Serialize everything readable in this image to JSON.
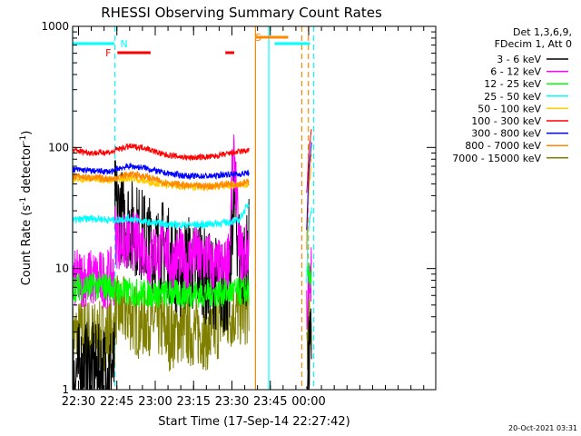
{
  "chart_data": {
    "type": "line",
    "title": "RHESSI Observing Summary Count Rates",
    "xlabel": "Start Time (17-Sep-14 22:27:42)",
    "ylabel_main": "Count Rate (s",
    "ylabel_sup1": "-1",
    "ylabel_mid": " detector",
    "ylabel_sup2": "-1",
    "ylabel_end": ")",
    "x_range_min": [
      0,
      142
    ],
    "y_range": [
      1,
      1000
    ],
    "y_scale": "log",
    "x_ticks": [
      {
        "m": 2.3,
        "label": "22:30"
      },
      {
        "m": 17.3,
        "label": "22:45"
      },
      {
        "m": 32.3,
        "label": "23:00"
      },
      {
        "m": 47.3,
        "label": "23:15"
      },
      {
        "m": 62.3,
        "label": "23:30"
      },
      {
        "m": 77.3,
        "label": "23:45"
      },
      {
        "m": 92.3,
        "label": "00:00"
      }
    ],
    "y_ticks": [
      {
        "v": 1,
        "label": "1"
      },
      {
        "v": 10,
        "label": "10"
      },
      {
        "v": 100,
        "label": "100"
      },
      {
        "v": 1000,
        "label": "1000"
      }
    ],
    "legend_header": [
      "Det 1,3,6,9,",
      "FDecim 1, Att 0"
    ],
    "series": [
      {
        "name": "3 - 6 keV",
        "color": "#000000",
        "segments": [
          {
            "x": [
              0,
              5,
              10,
              15,
              16.5
            ],
            "y": [
              1.4,
              1.5,
              1.4,
              1.5,
              1.5
            ]
          },
          {
            "x": [
              16.5,
              17,
              20,
              24,
              28,
              32,
              34,
              36,
              38,
              40,
              42,
              45,
              48,
              50,
              52,
              55,
              58,
              60,
              61.5,
              62.5,
              63.5,
              65,
              67,
              69
            ],
            "y": [
              35,
              32,
              26,
              22,
              18,
              15,
              13,
              17,
              12,
              11,
              9,
              12,
              9,
              12,
              8,
              8,
              7,
              7,
              7,
              30,
              35,
              14,
              10,
              16
            ]
          },
          {
            "x": [
              91.5,
              92,
              93,
              93.5
            ],
            "y": [
              1.2,
              1.5,
              2,
              3
            ]
          }
        ]
      },
      {
        "name": "6 - 12 keV",
        "color": "#ff00ff",
        "segments": [
          {
            "x": [
              0,
              5,
              10,
              15,
              16.5
            ],
            "y": [
              8,
              8.5,
              8,
              8.5,
              8.5
            ]
          },
          {
            "x": [
              16.5,
              17,
              20,
              24,
              28,
              30,
              32,
              34,
              36,
              38,
              40,
              42,
              44,
              46,
              48,
              50,
              52,
              54,
              56,
              58,
              60,
              61.5,
              62.5,
              63.5,
              65,
              67,
              69
            ],
            "y": [
              20,
              18,
              16,
              17,
              15,
              11,
              15,
              12,
              18,
              11,
              12,
              13,
              10,
              12,
              14,
              11,
              13,
              11,
              10,
              10,
              10,
              15,
              70,
              75,
              15,
              12,
              16
            ]
          },
          {
            "x": [
              91.5,
              92.5,
              93.5
            ],
            "y": [
              5,
              6,
              10
            ]
          }
        ]
      },
      {
        "name": "12 - 25 keV",
        "color": "#00ff00",
        "segments": [
          {
            "x": [
              0,
              10,
              16.5
            ],
            "y": [
              7,
              7.2,
              7
            ]
          },
          {
            "x": [
              16.5,
              30,
              50,
              69
            ],
            "y": [
              6.5,
              6.2,
              6.2,
              6.5
            ]
          },
          {
            "x": [
              91.5,
              93.5
            ],
            "y": [
              8,
              9
            ]
          }
        ]
      },
      {
        "name": "25 - 50 keV",
        "color": "#00ffff",
        "segments": [
          {
            "x": [
              0,
              8,
              16.5
            ],
            "y": [
              25,
              26,
              25
            ]
          },
          {
            "x": [
              16.5,
              22,
              30,
              40,
              50,
              60,
              65,
              69
            ],
            "y": [
              25,
              26,
              24,
              23,
              23,
              24,
              25,
              35
            ]
          },
          {
            "x": [
              91.5,
              92,
              93.5
            ],
            "y": [
              8,
              20,
              32
            ]
          }
        ]
      },
      {
        "name": "50 - 100 keV",
        "color": "#ffcc00",
        "segments": [
          {
            "x": [
              0,
              8,
              16.5
            ],
            "y": [
              54,
              55,
              54
            ]
          },
          {
            "x": [
              16.5,
              22,
              30,
              40,
              50,
              60,
              69
            ],
            "y": [
              54,
              56,
              52,
              48,
              47,
              48,
              50
            ]
          },
          {
            "x": [
              91.5,
              92.5,
              93.5
            ],
            "y": [
              20,
              50,
              70
            ]
          }
        ]
      },
      {
        "name": "100 - 300 keV",
        "color": "#ff0000",
        "segments": [
          {
            "x": [
              0,
              8,
              16.5
            ],
            "y": [
              95,
              90,
              92
            ]
          },
          {
            "x": [
              16.5,
              22,
              28,
              35,
              45,
              55,
              60,
              65,
              69
            ],
            "y": [
              95,
              102,
              100,
              88,
              82,
              84,
              88,
              92,
              95
            ]
          },
          {
            "x": [
              91.5,
              92.5,
              93.5
            ],
            "y": [
              40,
              100,
              140
            ]
          }
        ]
      },
      {
        "name": "300 - 800 keV",
        "color": "#0000ff",
        "segments": [
          {
            "x": [
              0,
              8,
              16.5
            ],
            "y": [
              66,
              64,
              63
            ]
          },
          {
            "x": [
              16.5,
              22,
              28,
              35,
              45,
              55,
              60,
              65,
              69
            ],
            "y": [
              66,
              70,
              68,
              62,
              58,
              58,
              60,
              60,
              62
            ]
          },
          {
            "x": [
              91.5,
              92.5,
              93.5
            ],
            "y": [
              20,
              75,
              110
            ]
          }
        ]
      },
      {
        "name": "800 - 7000 keV",
        "color": "#ff8800",
        "segments": [
          {
            "x": [
              0,
              8,
              16.5
            ],
            "y": [
              58,
              56,
              55
            ]
          },
          {
            "x": [
              16.5,
              22,
              28,
              35,
              45,
              55,
              60,
              65,
              69
            ],
            "y": [
              56,
              60,
              58,
              52,
              48,
              48,
              50,
              50,
              52
            ]
          },
          {
            "x": [
              91.5,
              92.5,
              93.5
            ],
            "y": [
              15,
              60,
              90
            ]
          }
        ]
      },
      {
        "name": "7000 - 15000 keV",
        "color": "#808000",
        "segments": [
          {
            "x": [
              0,
              5,
              10,
              16.5
            ],
            "y": [
              2.7,
              3,
              2.7,
              3
            ]
          },
          {
            "x": [
              16.5,
              22,
              26,
              30,
              34,
              38,
              42,
              46,
              50,
              54,
              58,
              62,
              66,
              69
            ],
            "y": [
              4.5,
              4.2,
              3.5,
              3.8,
              3.5,
              2.8,
              3.2,
              3,
              3,
              2.7,
              3.8,
              4.2,
              4.5,
              4.5
            ]
          },
          {
            "x": [
              91.5,
              92.5,
              93.5
            ],
            "y": [
              2.5,
              3.5,
              4
            ]
          }
        ]
      }
    ],
    "flags": [
      {
        "label": "N",
        "label_m": 17.2,
        "color": "#00ffff",
        "segments": [
          [
            0,
            16.3
          ],
          [
            79,
            92.8
          ]
        ]
      },
      {
        "label": "F",
        "label_m": 16.5,
        "color": "#ff0000",
        "segments": [
          [
            17.5,
            30.5
          ],
          [
            59.7,
            63.2
          ]
        ]
      },
      {
        "label": "S",
        "label_m": 69.9,
        "color": "#ff8800",
        "segments": [
          [
            71.5,
            84.3
          ]
        ]
      }
    ],
    "vlines": [
      {
        "m": 0,
        "color": "#00ffff",
        "dashed": false
      },
      {
        "m": 16.5,
        "color": "#00ffff",
        "dashed": true
      },
      {
        "m": 71.5,
        "color": "#ff8800",
        "dashed": false
      },
      {
        "m": 76.7,
        "color": "#00ffff",
        "dashed": false
      },
      {
        "m": 89.6,
        "color": "#ff8800",
        "dashed": true
      },
      {
        "m": 92.2,
        "color": "#ff8800",
        "dashed": true
      },
      {
        "m": 94.3,
        "color": "#00ffff",
        "dashed": true
      }
    ],
    "footer_timestamp": "20-Oct-2021 03:31"
  }
}
